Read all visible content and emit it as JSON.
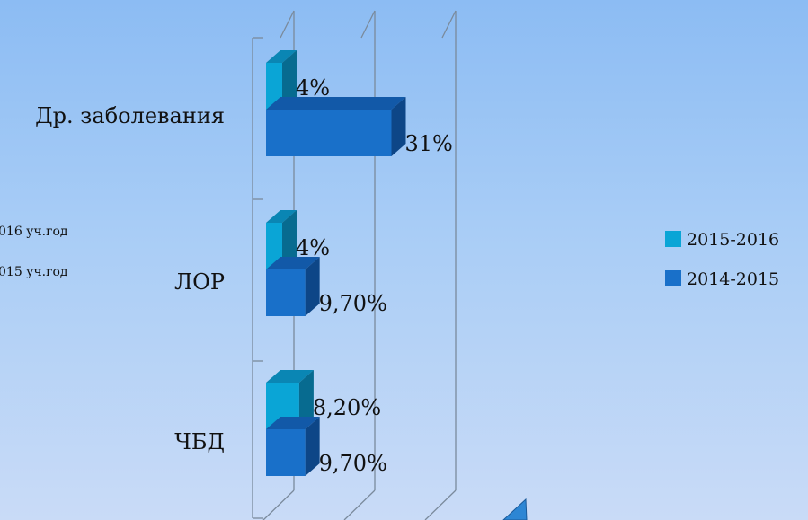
{
  "clipped_notes": [
    "016 уч.год",
    "015 уч.год"
  ],
  "chart_data": {
    "type": "bar",
    "orientation": "horizontal",
    "categories": [
      "Др. заболевания",
      "ЛОР",
      "ЧБД"
    ],
    "series": [
      {
        "name": "2015-2016",
        "values": [
          4,
          4,
          8.2
        ],
        "labels": [
          "4%",
          "4%",
          "8,20%"
        ],
        "color": "#0aa5d6",
        "top_color": "#0a86b4",
        "side_color": "#076b90"
      },
      {
        "name": "2014-2015",
        "values": [
          31,
          9.7,
          9.7
        ],
        "labels": [
          "31%",
          "9,70%",
          "9,70%"
        ],
        "color": "#1970c9",
        "top_color": "#1259a8",
        "side_color": "#0d4687"
      }
    ],
    "xlim": [
      0,
      40
    ],
    "grid": true,
    "legend": "right",
    "style": "3d"
  }
}
